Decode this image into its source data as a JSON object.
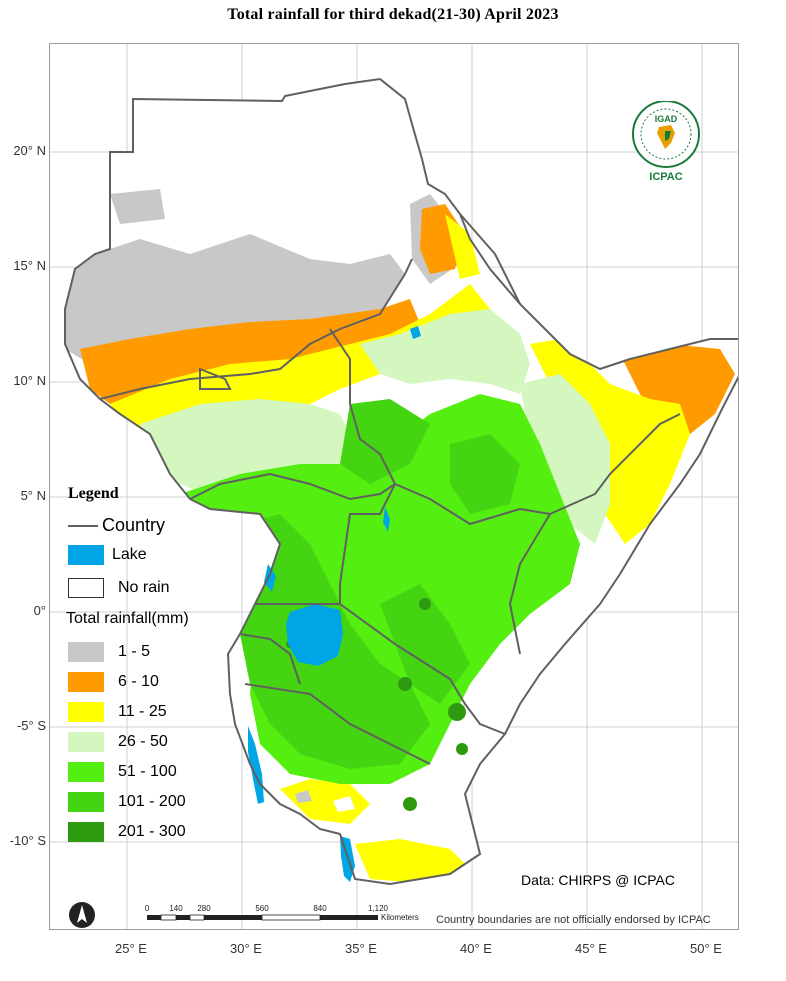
{
  "title": "Total rainfall  for  third dekad(21-30) April 2023",
  "lat_ticks": [
    "20° N",
    "15° N",
    "10° N",
    "5° N",
    "0°",
    "-5° S",
    "-10° S"
  ],
  "lon_ticks": [
    "25° E",
    "30° E",
    "35° E",
    "40° E",
    "45° E",
    "50° E"
  ],
  "legend": {
    "title": "Legend",
    "country_label": "Country",
    "lake_label": "Lake",
    "norain_label": "No rain",
    "rain_title": "Total rainfall(mm)",
    "classes": [
      {
        "label": "1 - 5",
        "color": "#c8c8c8"
      },
      {
        "label": "6 - 10",
        "color": "#ff9a00"
      },
      {
        "label": "11 - 25",
        "color": "#ffff00"
      },
      {
        "label": "26 - 50",
        "color": "#d4f7c0"
      },
      {
        "label": "51 - 100",
        "color": "#55ee11"
      },
      {
        "label": "101 - 200",
        "color": "#44d411"
      },
      {
        "label": "201 - 300",
        "color": "#2e9a10"
      }
    ]
  },
  "colors": {
    "lake": "#00a5e6",
    "country_border": "#606060",
    "no_rain": "#ffffff"
  },
  "scalebar": {
    "ticks": [
      "0",
      "140",
      "280",
      "560",
      "840",
      "1,120"
    ],
    "unit": "Kilometers"
  },
  "credit": "Data: CHIRPS @ ICPAC",
  "disclaimer": "Country boundaries are not officially endorsed by ICPAC",
  "logo": {
    "top_text": "IGAD",
    "bottom_text": "ICPAC"
  }
}
